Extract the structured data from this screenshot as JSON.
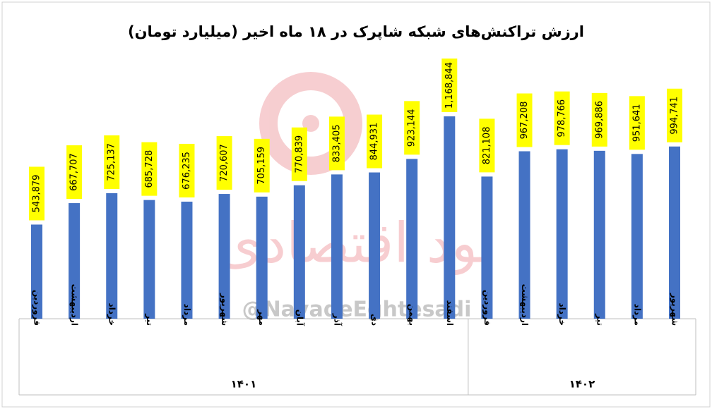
{
  "chart_data": {
    "type": "bar",
    "title": "ارزش تراکنش‌های شبکه شاپرک در ۱۸ ماه اخیر (میلیارد تومان)",
    "groups": [
      {
        "name": "۱۴۰۱",
        "categories": [
          "فروردین",
          "اردیبهشت",
          "خرداد",
          "تیر",
          "مرداد",
          "شهریور",
          "مهر",
          "آبان",
          "آذر",
          "دی",
          "بهمن",
          "اسفند"
        ]
      },
      {
        "name": "۱۴۰۲",
        "categories": [
          "فروردین",
          "اردیبهشت",
          "خرداد",
          "تیر",
          "مرداد",
          "شهریور"
        ]
      }
    ],
    "values": [
      543879,
      667707,
      725137,
      685728,
      676235,
      720607,
      705159,
      770839,
      833405,
      844931,
      923144,
      1168844,
      821108,
      967208,
      978766,
      969886,
      951641,
      994741
    ],
    "value_labels": [
      "543,879",
      "667,707",
      "725,137",
      "685,728",
      "676,235",
      "720,607",
      "705,159",
      "770,839",
      "833,405",
      "844,931",
      "923,144",
      "1,168,844",
      "821,108",
      "967,208",
      "978,766",
      "969,886",
      "951,641",
      "994,741"
    ],
    "color": "#4472c4",
    "label_background": "#ffff00",
    "watermark": {
      "logo_text": "نود اقتصادی",
      "handle": "@NavadeEghtesadi"
    }
  }
}
